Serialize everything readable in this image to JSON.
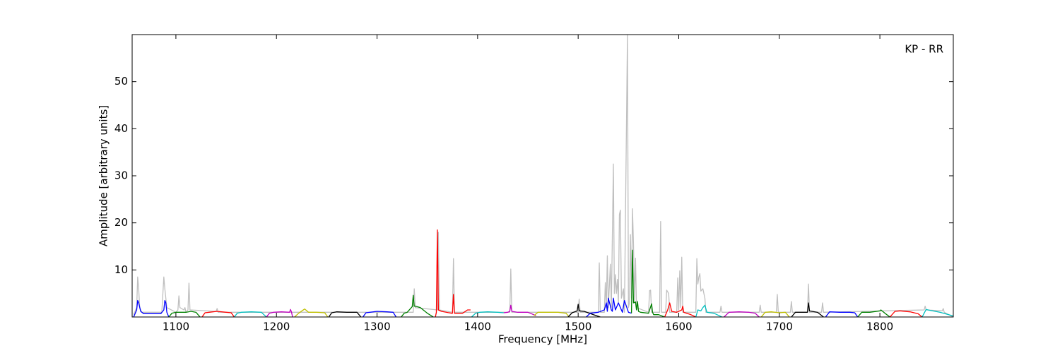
{
  "chart_data": {
    "type": "line",
    "xlabel": "Frequency [MHz]",
    "ylabel": "Amplitude [arbitrary units]",
    "annotation": "KP - RR",
    "xlim": [
      1056.5,
      1873
    ],
    "ylim": [
      0,
      60
    ],
    "xticks": [
      1100,
      1200,
      1300,
      1400,
      1500,
      1600,
      1700,
      1800
    ],
    "yticks": [
      10,
      20,
      30,
      40,
      50
    ],
    "series": [
      {
        "color": "#bfbfbf",
        "x": [
          1058,
          1061,
          1062,
          1063,
          1064,
          1066,
          1086,
          1088,
          1089,
          1091,
          1100,
          1102,
          1103,
          1104,
          1108,
          1109,
          1110,
          1112,
          1113,
          1114,
          1140,
          1141,
          1142,
          1336,
          1337,
          1338,
          1360,
          1361,
          1362,
          1375,
          1376,
          1377,
          1432,
          1433,
          1434,
          1500,
          1501,
          1502,
          1520,
          1521,
          1522,
          1526,
          1527,
          1528,
          1529,
          1530,
          1532,
          1533,
          1535,
          1536,
          1537,
          1538,
          1539,
          1540,
          1541,
          1542,
          1543,
          1545,
          1546,
          1549,
          1550,
          1551,
          1552,
          1553,
          1554,
          1555,
          1556,
          1557,
          1558,
          1570,
          1571,
          1572,
          1573,
          1581,
          1582,
          1583,
          1587,
          1588,
          1590,
          1591,
          1598,
          1599,
          1600,
          1601,
          1602,
          1603,
          1604,
          1617,
          1618,
          1619,
          1620,
          1621,
          1622,
          1624,
          1626,
          1627,
          1641,
          1642,
          1643,
          1680,
          1681,
          1682,
          1697,
          1698,
          1699,
          1711,
          1712,
          1713,
          1728,
          1729,
          1730,
          1742,
          1743,
          1744,
          1844,
          1845,
          1846,
          1862,
          1863,
          1864,
          1873
        ],
        "values": [
          0.5,
          2,
          8.5,
          6,
          2,
          1,
          1,
          8.5,
          6,
          2,
          1,
          1.5,
          4.5,
          2,
          1.5,
          2,
          1,
          1.5,
          7.2,
          1.5,
          1.2,
          1.8,
          1,
          1,
          6,
          2,
          1.5,
          18,
          1.5,
          1,
          12.4,
          1,
          1,
          10.2,
          1,
          1,
          3.8,
          1,
          1,
          11.5,
          1,
          1,
          7.3,
          2,
          13,
          2,
          11.2,
          2,
          32.5,
          5,
          9,
          5,
          8,
          3,
          21.8,
          22.7,
          4,
          6,
          1,
          60,
          2,
          3,
          17.5,
          4,
          23,
          15.5,
          3,
          12.5,
          2,
          1,
          5.6,
          5.7,
          1,
          1,
          20.3,
          1,
          1,
          5.7,
          5,
          1,
          1,
          8.3,
          1.5,
          9.8,
          2,
          12.7,
          1,
          1,
          12.4,
          7,
          8.5,
          9.2,
          5.5,
          6,
          4,
          1,
          1,
          2.3,
          1,
          1,
          2.5,
          1,
          1,
          4.8,
          1,
          1,
          3.3,
          1,
          1,
          7,
          1,
          1,
          3,
          1,
          1.5,
          2.3,
          1.5,
          1.3,
          1.8,
          1,
          0
        ]
      },
      {
        "color": "#0000ff",
        "x": [
          1058,
          1061,
          1062,
          1063,
          1065,
          1068,
          1085,
          1088,
          1089,
          1090,
          1091,
          1093
        ],
        "values": [
          0,
          1.5,
          3.5,
          3,
          1.2,
          0.7,
          0.7,
          1.5,
          3.5,
          3,
          1,
          0
        ]
      },
      {
        "color": "#008000",
        "x": [
          1093,
          1096,
          1100,
          1110,
          1115,
          1120,
          1124
        ],
        "values": [
          0,
          0.8,
          1,
          1,
          1.2,
          1,
          0
        ]
      },
      {
        "color": "#ff0000",
        "x": [
          1126,
          1129,
          1133,
          1141,
          1150,
          1155,
          1158
        ],
        "values": [
          0,
          0.9,
          1,
          1.2,
          1,
          0.9,
          0
        ]
      },
      {
        "color": "#00bfbf",
        "x": [
          1158,
          1161,
          1165,
          1175,
          1185,
          1190
        ],
        "values": [
          0,
          0.8,
          1,
          1.1,
          1,
          0
        ]
      },
      {
        "color": "#bf00bf",
        "x": [
          1190,
          1193,
          1197,
          1205,
          1213,
          1214,
          1215,
          1216
        ],
        "values": [
          0,
          0.8,
          1,
          1.1,
          1,
          1.6,
          1,
          0
        ]
      },
      {
        "color": "#bfbf00",
        "x": [
          1218,
          1222,
          1228,
          1232,
          1240,
          1248,
          1251
        ],
        "values": [
          0,
          0.8,
          1.7,
          1,
          1,
          0.9,
          0
        ]
      },
      {
        "color": "#000000",
        "x": [
          1252,
          1255,
          1260,
          1270,
          1280,
          1284
        ],
        "values": [
          0,
          0.9,
          1.1,
          1,
          1,
          0
        ]
      },
      {
        "color": "#0000ff",
        "x": [
          1286,
          1289,
          1293,
          1300,
          1310,
          1316,
          1319
        ],
        "values": [
          0,
          0.9,
          1,
          1.2,
          1.1,
          1,
          0
        ]
      },
      {
        "color": "#008000",
        "x": [
          1324,
          1327,
          1330,
          1335,
          1336,
          1337,
          1338,
          1343,
          1350,
          1356
        ],
        "values": [
          0,
          0.8,
          1,
          2.2,
          4.6,
          2.3,
          2.3,
          2,
          0.8,
          0
        ]
      },
      {
        "color": "#ff0000",
        "x": [
          1358,
          1359,
          1360,
          1361,
          1364,
          1374,
          1375,
          1376,
          1377,
          1385,
          1390,
          1393
        ],
        "values": [
          0,
          1,
          18.5,
          1.5,
          1.2,
          0.8,
          0.8,
          4.8,
          0.8,
          0.8,
          1.5,
          1.5
        ]
      },
      {
        "color": "#00bfbf",
        "x": [
          1394,
          1398,
          1402,
          1410,
          1420,
          1426
        ],
        "values": [
          0,
          0.8,
          1,
          1.1,
          1,
          0.9
        ]
      },
      {
        "color": "#bf00bf",
        "x": [
          1426,
          1430,
          1432,
          1433,
          1434,
          1440,
          1450,
          1458
        ],
        "values": [
          0.9,
          1,
          1.2,
          2.5,
          1.2,
          1,
          1,
          0.3
        ]
      },
      {
        "color": "#bfbf00",
        "x": [
          1456,
          1460,
          1470,
          1480,
          1488,
          1491
        ],
        "values": [
          0.3,
          1,
          1,
          1,
          0.8,
          0
        ]
      },
      {
        "color": "#000000",
        "x": [
          1490,
          1494,
          1499,
          1500,
          1501,
          1506,
          1515,
          1522
        ],
        "values": [
          0,
          0.9,
          1.3,
          2.7,
          1.3,
          1.2,
          0.5,
          0
        ]
      },
      {
        "color": "#0000ff",
        "x": [
          1508,
          1512,
          1520,
          1526,
          1528,
          1529,
          1530,
          1533,
          1534,
          1535,
          1537,
          1540,
          1544,
          1546,
          1550,
          1553
        ],
        "values": [
          0,
          0.8,
          1,
          1.5,
          3,
          1.2,
          4,
          1.5,
          1.2,
          4,
          1.5,
          3,
          1,
          3.5,
          1,
          0.8
        ]
      },
      {
        "color": "#008000",
        "x": [
          1553,
          1554,
          1555,
          1557,
          1558,
          1559,
          1560,
          1562,
          1570,
          1573,
          1574,
          1575,
          1577,
          1580,
          1586
        ],
        "values": [
          0.8,
          14.2,
          3,
          3.2,
          1.5,
          3.3,
          1.2,
          1,
          0.8,
          2.8,
          1,
          0.5,
          0.5,
          0.5,
          0
        ]
      },
      {
        "color": "#ff0000",
        "x": [
          1586,
          1589,
          1591,
          1593,
          1598,
          1603,
          1604,
          1605,
          1612,
          1617
        ],
        "values": [
          0,
          1.5,
          3,
          1.2,
          1,
          1.5,
          2.3,
          1,
          0.5,
          0
        ]
      },
      {
        "color": "#00bfbf",
        "x": [
          1617,
          1619,
          1622,
          1624,
          1626,
          1628,
          1635,
          1643
        ],
        "values": [
          0,
          1.5,
          1.3,
          2,
          2.5,
          1,
          0.8,
          0
        ]
      },
      {
        "color": "#bf00bf",
        "x": [
          1645,
          1650,
          1660,
          1670,
          1676,
          1680
        ],
        "values": [
          0,
          1,
          1.1,
          1,
          0.8,
          0
        ]
      },
      {
        "color": "#bfbf00",
        "x": [
          1682,
          1686,
          1692,
          1700,
          1706,
          1710
        ],
        "values": [
          0,
          1,
          1.1,
          0.9,
          1,
          0
        ]
      },
      {
        "color": "#000000",
        "x": [
          1712,
          1716,
          1722,
          1728,
          1729,
          1730,
          1738,
          1744
        ],
        "values": [
          0,
          1,
          1,
          1,
          3,
          1.3,
          1,
          0
        ]
      },
      {
        "color": "#0000ff",
        "x": [
          1746,
          1750,
          1760,
          1770,
          1775,
          1778
        ],
        "values": [
          0,
          1.1,
          1,
          1,
          0.9,
          0
        ]
      },
      {
        "color": "#008000",
        "x": [
          1778,
          1782,
          1790,
          1800,
          1801,
          1805,
          1810
        ],
        "values": [
          0,
          1,
          1,
          1.3,
          1.5,
          0.8,
          0
        ]
      },
      {
        "color": "#ff0000",
        "x": [
          1810,
          1815,
          1820,
          1830,
          1838,
          1842
        ],
        "values": [
          0,
          1.2,
          1.3,
          1.1,
          0.7,
          0
        ]
      },
      {
        "color": "#00bfbf",
        "x": [
          1842,
          1846,
          1850,
          1860,
          1870,
          1873
        ],
        "values": [
          0,
          1.6,
          1.4,
          1,
          0.4,
          0.2
        ]
      }
    ]
  }
}
